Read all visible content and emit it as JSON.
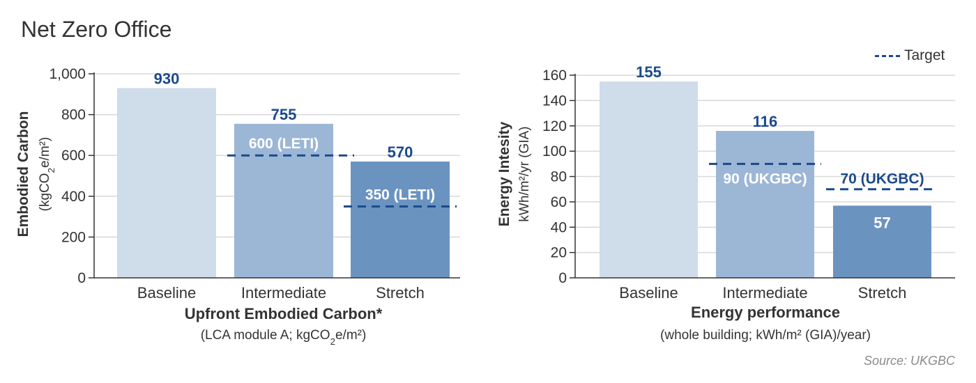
{
  "page": {
    "title": "Net Zero Office",
    "legend_label": "Target",
    "source": "Source: UKGBC"
  },
  "colors": {
    "baseline": "#cfdcea",
    "intermediate": "#9cb6d6",
    "stretch": "#6b93c0",
    "value_label": "#1b4a8c",
    "target_line": "#1b4a8c",
    "grid": "#d9d9d9"
  },
  "chart_data": [
    {
      "type": "bar",
      "categories": [
        "Baseline",
        "Intermediate",
        "Stretch"
      ],
      "values": [
        930,
        755,
        570
      ],
      "value_labels": [
        "930",
        "755",
        "570"
      ],
      "ylim": [
        0,
        1000
      ],
      "yticks": [
        0,
        200,
        400,
        600,
        800,
        1000
      ],
      "ytick_labels": [
        "0",
        "200",
        "400",
        "600",
        "800",
        "1,000"
      ],
      "ylabel": "Embodied Carbon",
      "ylabel_unit": "(kgCO2e/m²)",
      "xlabel": "Upfront Embodied Carbon*",
      "xlabel_sub": "(LCA module A; kgCO2e/m²)",
      "grid": true,
      "targets": [
        {
          "category": "Intermediate",
          "value": 600,
          "label": "600 (LETI)"
        },
        {
          "category": "Stretch",
          "value": 350,
          "label": "350 (LETI)"
        }
      ]
    },
    {
      "type": "bar",
      "categories": [
        "Baseline",
        "Intermediate",
        "Stretch"
      ],
      "values": [
        155,
        116,
        57
      ],
      "value_labels": [
        "155",
        "116",
        "57"
      ],
      "ylim": [
        0,
        160
      ],
      "yticks": [
        0,
        20,
        40,
        60,
        80,
        100,
        120,
        140,
        160
      ],
      "ytick_labels": [
        "0",
        "20",
        "40",
        "60",
        "80",
        "100",
        "120",
        "140",
        "160"
      ],
      "ylabel": "Energy Intesity",
      "ylabel_unit": "kWh/m²/yr (GIA)",
      "xlabel": "Energy performance",
      "xlabel_sub": "(whole building; kWh/m² (GIA)/year)",
      "grid": true,
      "legend": "top-right",
      "targets": [
        {
          "category": "Intermediate",
          "value": 90,
          "label": "90 (UKGBC)"
        },
        {
          "category": "Stretch",
          "value": 70,
          "label": "70 (UKGBC)"
        }
      ]
    }
  ]
}
